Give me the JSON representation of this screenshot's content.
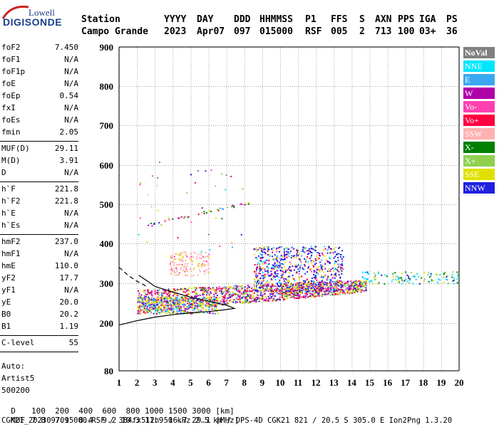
{
  "logo": {
    "line1": "Lowell",
    "line2": "DIGISONDE"
  },
  "header": {
    "row1": [
      "Station",
      "YYYY",
      "DAY",
      "DDD",
      "HHMMSS",
      "P1",
      "FFS",
      "S",
      "AXN",
      "PPS",
      "IGA",
      "PS"
    ],
    "row2": [
      "Campo Grande",
      "2023",
      "Apr07",
      "097",
      "015000",
      "RSF",
      "005",
      "2",
      "713",
      "100",
      "03+",
      "36"
    ]
  },
  "params": {
    "group1": [
      {
        "label": "foF2",
        "value": "7.450"
      },
      {
        "label": "foF1",
        "value": "N/A"
      },
      {
        "label": "foF1p",
        "value": "N/A"
      },
      {
        "label": "foE",
        "value": "N/A"
      },
      {
        "label": "foEp",
        "value": "0.54"
      },
      {
        "label": "fxI",
        "value": "N/A"
      },
      {
        "label": "foEs",
        "value": "N/A"
      },
      {
        "label": "fmin",
        "value": "2.05"
      }
    ],
    "group2": [
      {
        "label": "MUF(D)",
        "value": "29.11"
      },
      {
        "label": "M(D)",
        "value": "3.91"
      },
      {
        "label": "D",
        "value": "N/A"
      }
    ],
    "group3": [
      {
        "label": "h`F",
        "value": "221.8"
      },
      {
        "label": "h`F2",
        "value": "221.8"
      },
      {
        "label": "h`E",
        "value": "N/A"
      },
      {
        "label": "h`Es",
        "value": "N/A"
      }
    ],
    "group4": [
      {
        "label": "hmF2",
        "value": "237.0"
      },
      {
        "label": "hmF1",
        "value": "N/A"
      },
      {
        "label": "hmE",
        "value": "110.0"
      },
      {
        "label": "yF2",
        "value": "17.7"
      },
      {
        "label": "yF1",
        "value": "N/A"
      },
      {
        "label": "yE",
        "value": "20.0"
      },
      {
        "label": "B0",
        "value": "20.2"
      },
      {
        "label": "B1",
        "value": "1.19"
      }
    ],
    "group5": [
      {
        "label": "C-level",
        "value": "55"
      }
    ],
    "autoscale": [
      "Auto:",
      "Artist5",
      "500200"
    ]
  },
  "legend": [
    {
      "label": "NoVal",
      "color": "#808080"
    },
    {
      "label": "NNE",
      "color": "#00e5ff"
    },
    {
      "label": "E",
      "color": "#3aa8f0"
    },
    {
      "label": "W",
      "color": "#b000a8"
    },
    {
      "label": "Vo-",
      "color": "#ff40b0"
    },
    {
      "label": "Vo+",
      "color": "#ff0040"
    },
    {
      "label": "SSW",
      "color": "#ffb0b0"
    },
    {
      "label": "X-",
      "color": "#008000"
    },
    {
      "label": "X+",
      "color": "#90d050"
    },
    {
      "label": "SSE",
      "color": "#e0e000"
    },
    {
      "label": "NNW",
      "color": "#2020e0"
    }
  ],
  "bottom": {
    "row1_label": "D",
    "row1_values": "100  200  400  600  800 1000 1500 3000 [km]",
    "row2_label": "MUF",
    "row2_values": "7.8  7.9  8.4  9.2 10.3 11.9 16.7 29.1 [MHz]",
    "footer": "CGK21_2023097015000.RSF / 384fx512h 50 kHz 2.5 km / DPS-4D CGK21 821 / 20.5 S 305.0 E Ion2Png 1.3.20"
  },
  "chart_data": {
    "type": "scatter",
    "xlim": [
      1,
      20
    ],
    "ylim": [
      80,
      900
    ],
    "x_ticks": [
      1,
      2,
      3,
      4,
      5,
      6,
      7,
      8,
      9,
      10,
      11,
      12,
      13,
      14,
      15,
      16,
      17,
      18,
      19,
      20
    ],
    "y_ticks": [
      80,
      200,
      300,
      400,
      500,
      600,
      700,
      800,
      900
    ],
    "grid": true,
    "legend_position": "right",
    "profile_curve": {
      "x": [
        1.0,
        2.0,
        3.0,
        4.0,
        5.0,
        6.0,
        7.0,
        7.45,
        7.0,
        6.0,
        5.0,
        4.0,
        3.0,
        2.6,
        2.1
      ],
      "y": [
        195,
        206,
        215,
        221,
        226,
        229,
        234,
        237,
        245,
        255,
        265,
        278,
        292,
        305,
        320
      ]
    },
    "trace_dashed": {
      "x": [
        1.0,
        1.5,
        2.0,
        2.5
      ],
      "y": [
        340,
        320,
        305,
        293
      ]
    },
    "clusters": [
      {
        "name": "main-O-trace",
        "x0": 2.0,
        "x1": 14.8,
        "y0": 225,
        "y1": 300,
        "n": 1600
      },
      {
        "name": "upper-spread",
        "x0": 8.5,
        "x1": 13.5,
        "y0": 280,
        "y1": 395,
        "n": 700
      },
      {
        "name": "lower-band",
        "x0": 2.0,
        "x1": 6.5,
        "y0": 225,
        "y1": 265,
        "n": 400
      },
      {
        "name": "extension",
        "x0": 14.5,
        "x1": 20.0,
        "y0": 300,
        "y1": 330,
        "n": 120
      },
      {
        "name": "pink-spread",
        "x0": 3.8,
        "x1": 6.0,
        "y0": 320,
        "y1": 380,
        "n": 150
      },
      {
        "name": "high-diagonal",
        "x0": 2.5,
        "x1": 8.5,
        "y0": 445,
        "y1": 510,
        "n": 45
      },
      {
        "name": "scatter-upper",
        "x0": 2.0,
        "x1": 8.0,
        "y0": 380,
        "y1": 620,
        "n": 40
      }
    ]
  }
}
